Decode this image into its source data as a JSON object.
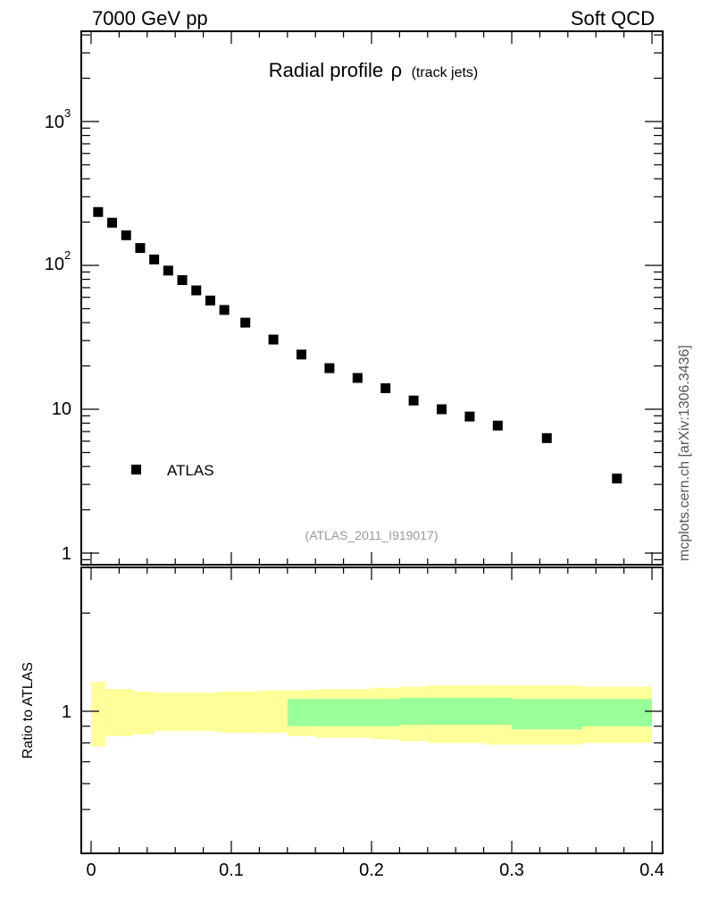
{
  "header": {
    "left": "7000 GeV pp",
    "right": "Soft QCD"
  },
  "side_label": "mcplots.cern.ch [arXiv:1306.3436]",
  "chart_data": [
    {
      "type": "scatter",
      "title": "Radial profile",
      "title_symbol": "ρ",
      "title_suffix": "(track jets)",
      "yscale": "log",
      "xlim": [
        0,
        0.4
      ],
      "ylim": [
        0.8,
        4000
      ],
      "y_tick_labels": [
        "1",
        "10",
        "10",
        "10"
      ],
      "y_tick_exponents": [
        "",
        "",
        "2",
        "3"
      ],
      "legend": {
        "label": "ATLAS",
        "position": "lower-left"
      },
      "watermark": "(ATLAS_2011_I919017)",
      "series": [
        {
          "name": "ATLAS",
          "color": "#000000",
          "x": [
            0.005,
            0.015,
            0.025,
            0.035,
            0.045,
            0.055,
            0.065,
            0.075,
            0.085,
            0.095,
            0.11,
            0.13,
            0.15,
            0.17,
            0.19,
            0.21,
            0.23,
            0.25,
            0.27,
            0.29,
            0.325,
            0.375
          ],
          "y": [
            235,
            198,
            162,
            132,
            110,
            92,
            79,
            67,
            57,
            49,
            40,
            30.5,
            24,
            19.3,
            16.5,
            14,
            11.5,
            10,
            8.9,
            7.7,
            6.3,
            3.3
          ]
        }
      ]
    },
    {
      "type": "area",
      "ylabel": "Ratio to ATLAS",
      "xlim": [
        0,
        0.4
      ],
      "x_tick_labels": [
        "0",
        "0.1",
        "0.2",
        "0.3",
        "0.4"
      ],
      "y_tick_labels": [
        "1"
      ],
      "bands": [
        {
          "color": "#ffff99",
          "segments": [
            [
              0.0,
              0.01,
              0.78,
              1.23
            ],
            [
              0.01,
              0.03,
              0.84,
              1.17
            ],
            [
              0.03,
              0.045,
              0.85,
              1.15
            ],
            [
              0.045,
              0.09,
              0.87,
              1.14
            ],
            [
              0.09,
              0.12,
              0.86,
              1.15
            ],
            [
              0.12,
              0.14,
              0.86,
              1.16
            ],
            [
              0.14,
              0.16,
              0.84,
              1.16
            ],
            [
              0.16,
              0.2,
              0.83,
              1.17
            ],
            [
              0.2,
              0.22,
              0.82,
              1.18
            ],
            [
              0.22,
              0.24,
              0.81,
              1.19
            ],
            [
              0.24,
              0.28,
              0.8,
              1.2
            ],
            [
              0.28,
              0.35,
              0.79,
              1.2
            ],
            [
              0.35,
              0.4,
              0.8,
              1.19
            ]
          ]
        },
        {
          "color": "#99ff99",
          "segments": [
            [
              0.14,
              0.22,
              0.9,
              1.09
            ],
            [
              0.22,
              0.3,
              0.91,
              1.1
            ],
            [
              0.3,
              0.35,
              0.88,
              1.09
            ],
            [
              0.35,
              0.4,
              0.9,
              1.09
            ]
          ]
        }
      ]
    }
  ]
}
